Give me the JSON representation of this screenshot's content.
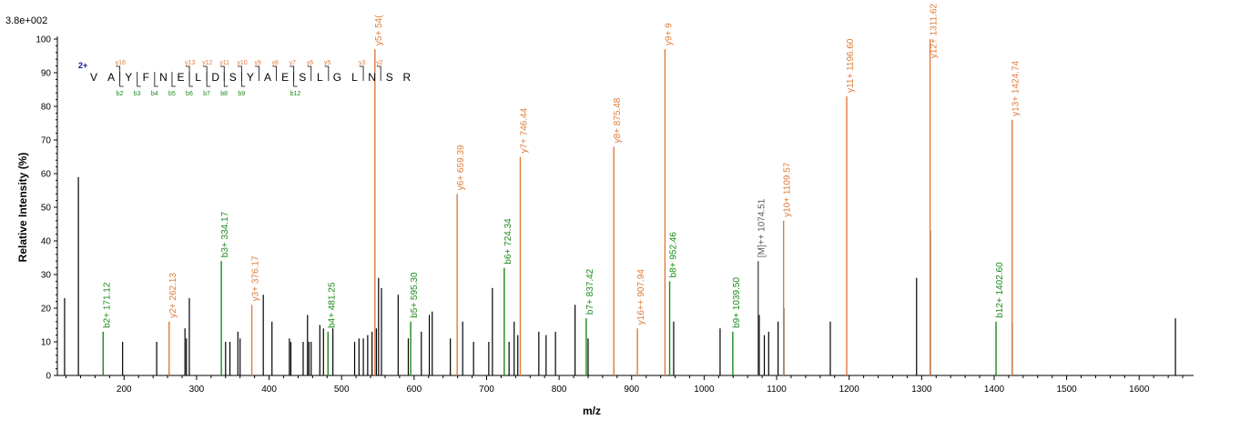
{
  "chart_data": {
    "type": "bar",
    "scale_label": "3.8e+002",
    "xlabel": "m/z",
    "ylabel": "Relative Intensity (%)",
    "xlim": [
      108,
      1675
    ],
    "ylim": [
      0,
      100
    ],
    "x_ticks": [
      200,
      300,
      400,
      500,
      600,
      700,
      800,
      900,
      1000,
      1100,
      1200,
      1300,
      1400,
      1500,
      1600
    ],
    "y_ticks": [
      0,
      10,
      20,
      30,
      40,
      50,
      60,
      70,
      80,
      90,
      100
    ],
    "colors": {
      "y_ion": "#e07b39",
      "b_ion": "#1a8a1a",
      "precursor": "#555555",
      "other": "#000000",
      "charge": "#1010a0"
    },
    "peptide": {
      "charge": "2+",
      "sequence": [
        "V",
        "A",
        "Y",
        "F",
        "N",
        "E",
        "L",
        "D",
        "S",
        "Y",
        "A",
        "E",
        "S",
        "L",
        "G",
        "L",
        "N",
        "S",
        "R"
      ],
      "y_markers": [
        {
          "after": 2,
          "label": "y16"
        },
        {
          "after": 6,
          "label": "y13"
        },
        {
          "after": 7,
          "label": "y12"
        },
        {
          "after": 8,
          "label": "y11"
        },
        {
          "after": 9,
          "label": "y10"
        },
        {
          "after": 10,
          "label": "y9"
        },
        {
          "after": 11,
          "label": "y8"
        },
        {
          "after": 12,
          "label": "y7"
        },
        {
          "after": 13,
          "label": "y6"
        },
        {
          "after": 14,
          "label": "y5"
        },
        {
          "after": 16,
          "label": "y3"
        },
        {
          "after": 17,
          "label": "y2"
        }
      ],
      "b_markers": [
        {
          "after": 2,
          "label": "b2"
        },
        {
          "after": 3,
          "label": "b3"
        },
        {
          "after": 4,
          "label": "b4"
        },
        {
          "after": 5,
          "label": "b5"
        },
        {
          "after": 6,
          "label": "b6"
        },
        {
          "after": 7,
          "label": "b7"
        },
        {
          "after": 8,
          "label": "b8"
        },
        {
          "after": 9,
          "label": "b9"
        },
        {
          "after": 12,
          "label": "b12"
        }
      ]
    },
    "annotated_peaks": [
      {
        "mz": 171.12,
        "intensity": 13,
        "ion": "b",
        "label": "b2+ 171.12"
      },
      {
        "mz": 262.13,
        "intensity": 16,
        "ion": "y",
        "label": "y2+ 262.13"
      },
      {
        "mz": 334.17,
        "intensity": 34,
        "ion": "b",
        "label": "b3+ 334.17"
      },
      {
        "mz": 376.17,
        "intensity": 21,
        "ion": "y",
        "label": "y3+ 376.17"
      },
      {
        "mz": 481.25,
        "intensity": 13,
        "ion": "b",
        "label": "b4+ 481.25"
      },
      {
        "mz": 546.0,
        "intensity": 97,
        "ion": "y",
        "label": "y5+ 54("
      },
      {
        "mz": 595.3,
        "intensity": 16,
        "ion": "b",
        "label": "b5+ 595.30"
      },
      {
        "mz": 659.39,
        "intensity": 54,
        "ion": "y",
        "label": "y6+ 659.39"
      },
      {
        "mz": 724.34,
        "intensity": 32,
        "ion": "b",
        "label": "b6+ 724.34"
      },
      {
        "mz": 746.44,
        "intensity": 65,
        "ion": "y",
        "label": "y7+ 746.44"
      },
      {
        "mz": 837.42,
        "intensity": 17,
        "ion": "b",
        "label": "b7+ 837.42"
      },
      {
        "mz": 875.48,
        "intensity": 68,
        "ion": "y",
        "label": "y8+ 875.48"
      },
      {
        "mz": 907.94,
        "intensity": 14,
        "ion": "y",
        "label": "y16++ 907.94"
      },
      {
        "mz": 946.0,
        "intensity": 97,
        "ion": "y",
        "label": "y9+ 9"
      },
      {
        "mz": 952.46,
        "intensity": 28,
        "ion": "b",
        "label": "b8+ 952.46"
      },
      {
        "mz": 1039.5,
        "intensity": 13,
        "ion": "b",
        "label": "b9+ 1039.50"
      },
      {
        "mz": 1074.51,
        "intensity": 34,
        "ion": "precursor",
        "label": "[M]++ 1074.51"
      },
      {
        "mz": 1109.57,
        "intensity": 46,
        "ion": "y",
        "label": "y10+ 1109.57"
      },
      {
        "mz": 1196.6,
        "intensity": 83,
        "ion": "y",
        "label": "y11+ 1196.60"
      },
      {
        "mz": 1311.62,
        "intensity": 100,
        "ion": "y",
        "label": "y12+ 1311.62"
      },
      {
        "mz": 1402.6,
        "intensity": 16,
        "ion": "b",
        "label": "b12+ 1402.60"
      },
      {
        "mz": 1424.74,
        "intensity": 76,
        "ion": "y",
        "label": "y13+ 1424.74"
      }
    ],
    "unlabeled_peaks": [
      {
        "mz": 118,
        "intensity": 23
      },
      {
        "mz": 137,
        "intensity": 59
      },
      {
        "mz": 198,
        "intensity": 10
      },
      {
        "mz": 245,
        "intensity": 10
      },
      {
        "mz": 284,
        "intensity": 14
      },
      {
        "mz": 286,
        "intensity": 11
      },
      {
        "mz": 290,
        "intensity": 23
      },
      {
        "mz": 340,
        "intensity": 10
      },
      {
        "mz": 346,
        "intensity": 10
      },
      {
        "mz": 357,
        "intensity": 13
      },
      {
        "mz": 360,
        "intensity": 11
      },
      {
        "mz": 392,
        "intensity": 24
      },
      {
        "mz": 404,
        "intensity": 16
      },
      {
        "mz": 428,
        "intensity": 11
      },
      {
        "mz": 430,
        "intensity": 10
      },
      {
        "mz": 447,
        "intensity": 10
      },
      {
        "mz": 453,
        "intensity": 18
      },
      {
        "mz": 455,
        "intensity": 10
      },
      {
        "mz": 458,
        "intensity": 10
      },
      {
        "mz": 470,
        "intensity": 15
      },
      {
        "mz": 475,
        "intensity": 14
      },
      {
        "mz": 488,
        "intensity": 14
      },
      {
        "mz": 518,
        "intensity": 10
      },
      {
        "mz": 524,
        "intensity": 11
      },
      {
        "mz": 530,
        "intensity": 11
      },
      {
        "mz": 536,
        "intensity": 12
      },
      {
        "mz": 542,
        "intensity": 13
      },
      {
        "mz": 548,
        "intensity": 14
      },
      {
        "mz": 551,
        "intensity": 29
      },
      {
        "mz": 555,
        "intensity": 26
      },
      {
        "mz": 578,
        "intensity": 24
      },
      {
        "mz": 592,
        "intensity": 11
      },
      {
        "mz": 610,
        "intensity": 13
      },
      {
        "mz": 621,
        "intensity": 18
      },
      {
        "mz": 625,
        "intensity": 19
      },
      {
        "mz": 650,
        "intensity": 11
      },
      {
        "mz": 667,
        "intensity": 16
      },
      {
        "mz": 682,
        "intensity": 10
      },
      {
        "mz": 703,
        "intensity": 10
      },
      {
        "mz": 708,
        "intensity": 26
      },
      {
        "mz": 731,
        "intensity": 10
      },
      {
        "mz": 738,
        "intensity": 16
      },
      {
        "mz": 743,
        "intensity": 12
      },
      {
        "mz": 772,
        "intensity": 13
      },
      {
        "mz": 782,
        "intensity": 12
      },
      {
        "mz": 795,
        "intensity": 13
      },
      {
        "mz": 822,
        "intensity": 21
      },
      {
        "mz": 840,
        "intensity": 11
      },
      {
        "mz": 958,
        "intensity": 16
      },
      {
        "mz": 1022,
        "intensity": 14
      },
      {
        "mz": 1076,
        "intensity": 18
      },
      {
        "mz": 1083,
        "intensity": 12
      },
      {
        "mz": 1089,
        "intensity": 13
      },
      {
        "mz": 1102,
        "intensity": 16
      },
      {
        "mz": 1110,
        "intensity": 20
      },
      {
        "mz": 1174,
        "intensity": 16
      },
      {
        "mz": 1293,
        "intensity": 29
      },
      {
        "mz": 1312,
        "intensity": 43
      },
      {
        "mz": 1425,
        "intensity": 16
      },
      {
        "mz": 1650,
        "intensity": 17
      }
    ]
  }
}
